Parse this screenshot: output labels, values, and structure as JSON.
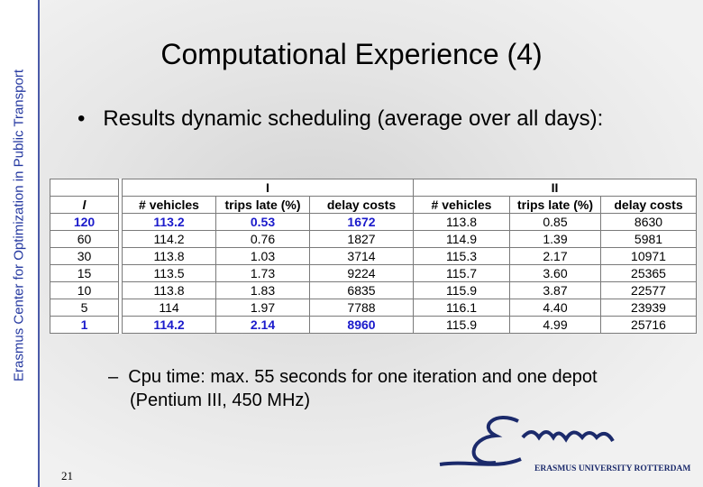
{
  "sidebar": {
    "text": "Erasmus Center for Optimization in Public Transport"
  },
  "header": {
    "title": "Computational Experience (4)"
  },
  "bullet": "Results dynamic scheduling (average over all days):",
  "table": {
    "groups": [
      "I",
      "II"
    ],
    "columns": [
      "l",
      "# vehicles",
      "trips late (%)",
      "delay costs",
      "# vehicles",
      "trips late (%)",
      "delay costs"
    ],
    "rows": [
      [
        "120",
        "113.2",
        "0.53",
        "1672",
        "113.8",
        "0.85",
        "8630"
      ],
      [
        "60",
        "114.2",
        "0.76",
        "1827",
        "114.9",
        "1.39",
        "5981"
      ],
      [
        "30",
        "113.8",
        "1.03",
        "3714",
        "115.3",
        "2.17",
        "10971"
      ],
      [
        "15",
        "113.5",
        "1.73",
        "9224",
        "115.7",
        "3.60",
        "25365"
      ],
      [
        "10",
        "113.8",
        "1.83",
        "6835",
        "115.9",
        "3.87",
        "22577"
      ],
      [
        "5",
        "114",
        "1.97",
        "7788",
        "116.1",
        "4.40",
        "23939"
      ],
      [
        "1",
        "114.2",
        "2.14",
        "8960",
        "115.9",
        "4.99",
        "25716"
      ]
    ]
  },
  "sub_bullet": "Cpu time: max. 55 seconds for one iteration and one depot (Pentium III, 450 MHz)",
  "footer": {
    "page_number": "21",
    "logo_text": "ERASMUS UNIVERSITY ROTTERDAM"
  }
}
